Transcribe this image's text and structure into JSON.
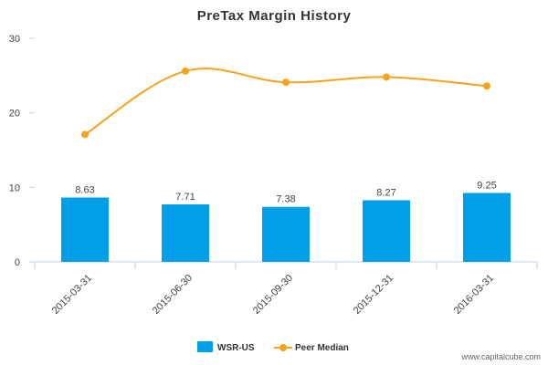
{
  "chart_data": {
    "type": "bar",
    "title": "PreTax Margin History",
    "categories": [
      "2015-03-31",
      "2015-06-30",
      "2015-09-30",
      "2015-12-31",
      "2016-03-31"
    ],
    "ylim": [
      0,
      30
    ],
    "yticks": [
      0,
      10,
      20,
      30
    ],
    "grid": false,
    "legend_position": "bottom",
    "series": [
      {
        "name": "WSR-US",
        "type": "bar",
        "color": "#009fe8",
        "values": [
          8.63,
          7.71,
          7.38,
          8.27,
          9.25
        ],
        "data_labels": [
          "8.63",
          "7.71",
          "7.38",
          "8.27",
          "9.25"
        ]
      },
      {
        "name": "Peer Median",
        "type": "line",
        "color": "#f5a31c",
        "values": [
          17.1,
          25.6,
          24.1,
          24.8,
          23.6
        ]
      }
    ]
  },
  "watermark": "www.capitalcube.com"
}
